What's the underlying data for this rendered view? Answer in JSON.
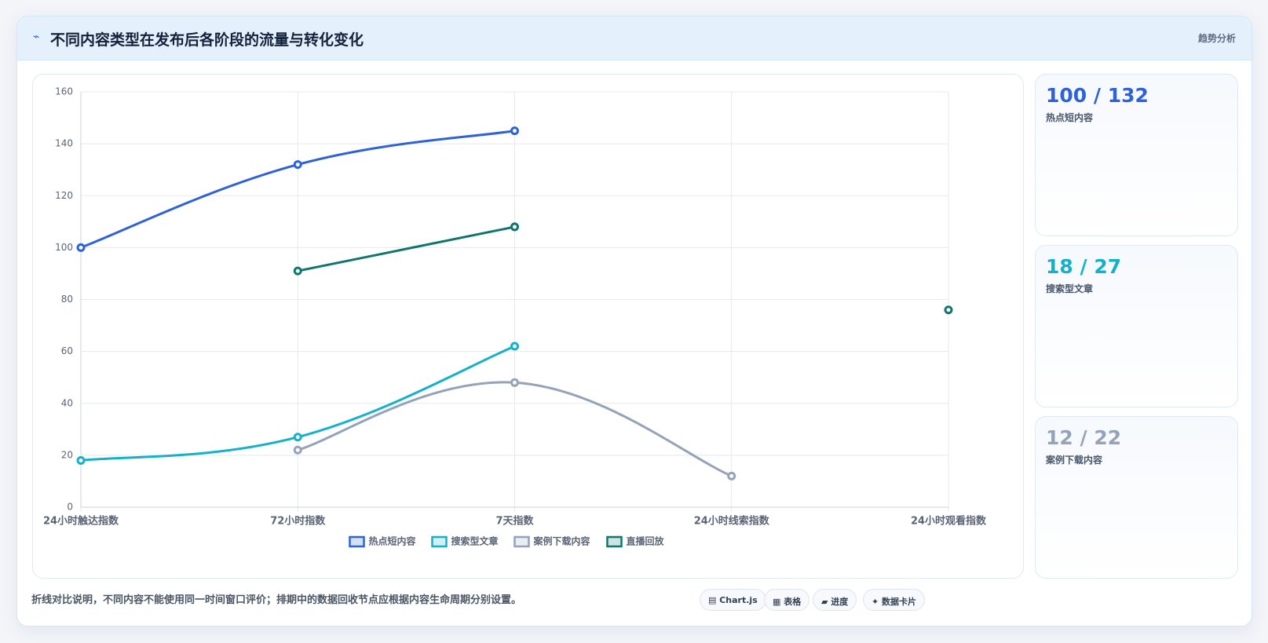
{
  "header": {
    "title": "不同内容类型在发布后各阶段的流量与转化变化",
    "tag": "趋势分析"
  },
  "chart_data": {
    "type": "line",
    "categories": [
      "24小时触达指数",
      "72小时指数",
      "7天指数",
      "24小时线索指数",
      "24小时观看指数"
    ],
    "series": [
      {
        "name": "热点短内容",
        "color": "#2f62d6",
        "values": [
          100,
          132,
          145,
          null,
          null
        ]
      },
      {
        "name": "搜索型文章",
        "color": "#14b2c9",
        "values": [
          18,
          27,
          62,
          null,
          null
        ]
      },
      {
        "name": "案例下载内容",
        "color": "#94a3b8",
        "values": [
          null,
          22,
          48,
          12,
          null
        ]
      },
      {
        "name": "直播回放",
        "color": "#0f766e",
        "values": [
          null,
          91,
          108,
          null,
          76
        ]
      }
    ],
    "ylim": [
      0,
      160
    ],
    "yticks": [
      0,
      20,
      40,
      60,
      80,
      100,
      120,
      140,
      160
    ],
    "grid": true,
    "smooth": true
  },
  "cards": [
    {
      "value": "100 / 132",
      "label": "热点短内容"
    },
    {
      "value": "18 / 27",
      "label": "搜索型文章"
    },
    {
      "value": "12 / 22",
      "label": "案例下载内容"
    }
  ],
  "note": "折线对比说明，不同内容不能使用同一时间窗口评价；排期中的数据回收节点应根据内容生命周期分别设置。",
  "buttons": [
    "Chart.js",
    "表格",
    "进度",
    "数据卡片"
  ]
}
